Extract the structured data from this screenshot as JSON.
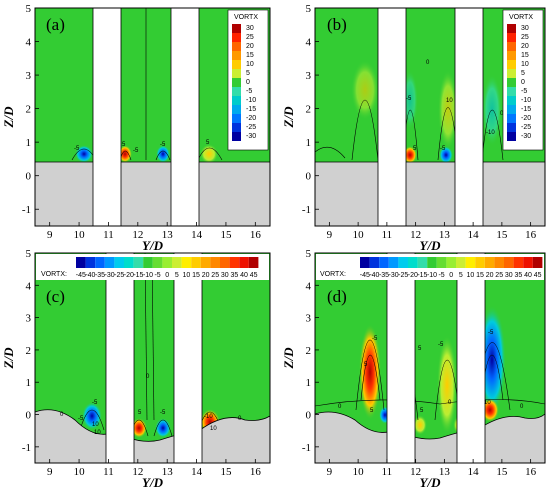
{
  "panels": [
    {
      "label": "(a)",
      "contour_labels": [
        "-5",
        "5",
        "-5",
        "-5",
        "5"
      ]
    },
    {
      "label": "(b)",
      "contour_labels": [
        "0",
        "-5",
        "5",
        "-5",
        "10",
        "-10",
        "5",
        "0"
      ]
    },
    {
      "label": "(c)",
      "contour_labels": [
        "0",
        "-5",
        "-5",
        "10",
        "-10",
        "5",
        "-5",
        "0",
        "0",
        "-10",
        "10"
      ]
    },
    {
      "label": "(d)",
      "contour_labels": [
        "0",
        "-5",
        "5",
        "5",
        "-5",
        "-5",
        "5",
        "10",
        "0",
        "5",
        "0"
      ]
    }
  ],
  "axes": {
    "xlabel": "Y/D",
    "ylabel": "Z/D",
    "xticks": [
      "9",
      "10",
      "11",
      "12",
      "13",
      "14",
      "15",
      "16"
    ],
    "yticks": [
      "5",
      "4",
      "3",
      "2",
      "1",
      "0",
      "-1"
    ]
  },
  "colorbar_vertical": {
    "title": "VORTX",
    "levels": [
      "30",
      "25",
      "20",
      "15",
      "10",
      "5",
      "0",
      "-5",
      "-10",
      "-15",
      "-20",
      "-25",
      "-30"
    ]
  },
  "colorbar_horizontal": {
    "title": "VORTX:",
    "levels": [
      "-45",
      "-40",
      "-35",
      "-30",
      "-25",
      "-20",
      "-15",
      "-10",
      "-5",
      "0",
      "5",
      "10",
      "15",
      "20",
      "25",
      "30",
      "35",
      "40",
      "45"
    ]
  },
  "colors": {
    "background_field": "#33cc33",
    "ground": "#d0d0d0"
  }
}
